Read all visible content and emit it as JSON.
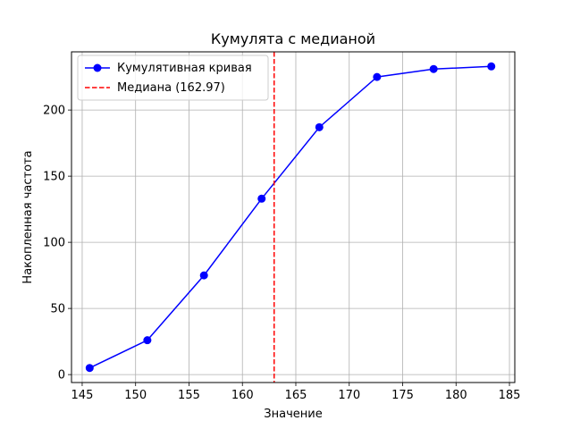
{
  "chart_data": {
    "type": "line",
    "title": "Кумулята с медианой",
    "xlabel": "Значение",
    "ylabel": "Накопленная частота",
    "xlim": [
      144,
      185.5
    ],
    "ylim": [
      -6,
      244
    ],
    "x_ticks": [
      145,
      150,
      155,
      160,
      165,
      170,
      175,
      180,
      185
    ],
    "y_ticks": [
      0,
      50,
      100,
      150,
      200
    ],
    "grid": true,
    "legend_position": "top-left",
    "series": [
      {
        "name": "Кумулятивная кривая",
        "color": "#0000ff",
        "marker": "circle",
        "x": [
          145.7,
          151.1,
          156.4,
          161.8,
          167.2,
          172.6,
          177.9,
          183.3
        ],
        "y": [
          5,
          26,
          75,
          133,
          187,
          225,
          231,
          233
        ]
      }
    ],
    "vlines": [
      {
        "name": "Медиана (162.97)",
        "x": 162.97,
        "color": "#ff0000",
        "style": "dashed"
      }
    ]
  }
}
